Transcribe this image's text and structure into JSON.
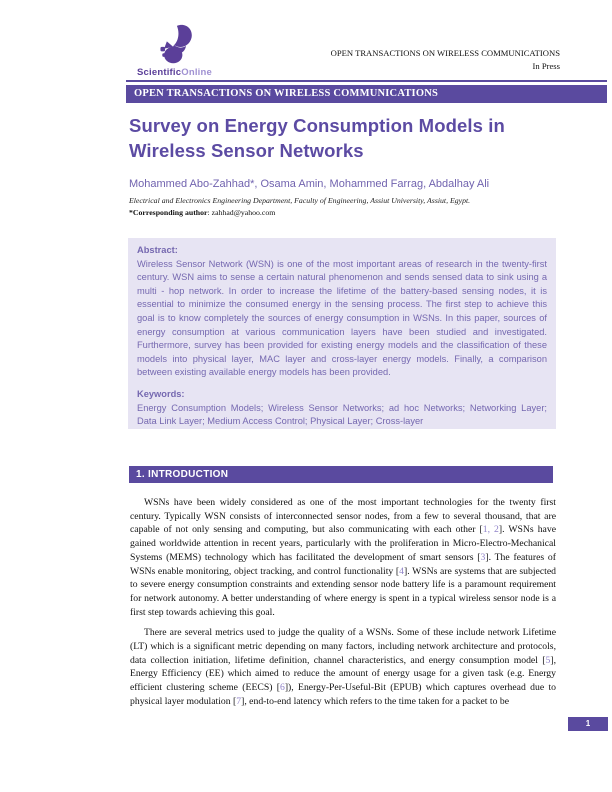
{
  "colors": {
    "brand_purple": "#5a4a9f",
    "logo_purple": "#5b3f99",
    "abstract_background": "#e7e4f3",
    "abstract_text": "#7568b0",
    "citation_link": "#8f82c8"
  },
  "header": {
    "logo_text_bold": "Scientific",
    "logo_text_light": "Online",
    "journal_name": "OPEN TRANSACTIONS ON WIRELESS COMMUNICATIONS",
    "status": "In Press"
  },
  "banner": {
    "label": "OPEN TRANSACTIONS ON WIRELESS COMMUNICATIONS"
  },
  "article": {
    "title": "Survey on Energy Consumption Models in Wireless Sensor Networks",
    "authors": "Mohammed Abo-Zahhad*, Osama Amin, Mohammed Farrag, Abdalhay Ali",
    "affiliation": "Electrical and Electronics Engineering Department, Faculty of Engineering, Assiut University, Assiut, Egypt.",
    "corresponding_label": "*Corresponding author",
    "corresponding_rest": ": zahhad@yahoo.com"
  },
  "abstract": {
    "heading": "Abstract:",
    "text": "Wireless Sensor Network (WSN) is one of the most important areas of research in the twenty-first century.  WSN aims to sense a certain natural phenomenon and sends sensed data to sink using a multi - hop network.  In order to increase the lifetime of the battery-based sensing nodes, it is essential to minimize the consumed energy in the sensing process.  The first step to achieve this goal is to know completely the sources of energy consumption in WSNs.  In this paper, sources of energy consumption at various communication layers have been studied and investigated.  Furthermore, survey has been provided for existing energy models and the classification of these models into physical layer, MAC layer and cross-layer energy models. Finally, a comparison between existing available energy models has been provided.",
    "keywords_heading": "Keywords:",
    "keywords": "Energy Consumption Models; Wireless Sensor Networks; ad hoc Networks; Networking Layer; Data Link Layer; Medium Access Control; Physical Layer; Cross-layer"
  },
  "section": {
    "number_and_title": "1.  INTRODUCTION"
  },
  "body": {
    "paragraphs": [
      {
        "segments": [
          {
            "t": "WSNs have been widely considered as one of the most important technologies for the twenty first century. Typically WSN consists of interconnected sensor nodes, from a few to several thousand, that are capable of not only sensing and computing, but also communicating with each other ["
          },
          {
            "t": "1, 2",
            "cite": true
          },
          {
            "t": "]. WSNs have gained worldwide attention in recent years, particularly with the proliferation in Micro-Electro-Mechanical Systems (MEMS) technology which has facilitated the development of smart sensors ["
          },
          {
            "t": "3",
            "cite": true
          },
          {
            "t": "]. The features of WSNs enable monitoring, object tracking, and control functionality ["
          },
          {
            "t": "4",
            "cite": true
          },
          {
            "t": "]. WSNs are systems that are subjected to severe energy consumption constraints and extending sensor node battery life is a paramount requirement for network autonomy. A better understanding of where energy is spent in a typical wireless sensor node is a first step towards achieving this goal."
          }
        ]
      },
      {
        "segments": [
          {
            "t": "There are several metrics used to judge the quality of a WSNs. Some of these include network Lifetime (LT) which is a significant metric depending on many factors, including network architecture and protocols, data collection initiation, lifetime definition, channel characteristics, and energy consumption model ["
          },
          {
            "t": "5",
            "cite": true
          },
          {
            "t": "], Energy Efficiency (EE) which aimed to reduce the amount of energy usage for a given task (e.g. Energy efficient clustering scheme (EECS) ["
          },
          {
            "t": "6",
            "cite": true
          },
          {
            "t": "]), Energy-Per-Useful-Bit (EPUB) which captures overhead due to physical layer modulation ["
          },
          {
            "t": "7",
            "cite": true
          },
          {
            "t": "], end-to-end latency which refers to the time taken for a packet to be"
          }
        ]
      }
    ]
  },
  "footer": {
    "page_number": "1"
  }
}
